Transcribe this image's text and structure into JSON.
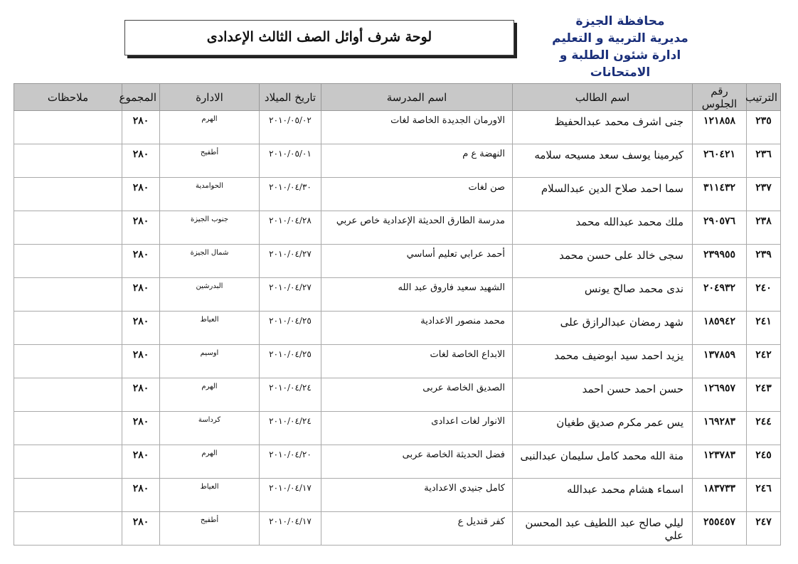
{
  "header": {
    "org_lines": [
      "محافظة الجيزة",
      "مديرية التربية و التعليم",
      "ادارة شئون الطلبة و الامتحانات"
    ],
    "title": "لوحة شرف أوائل الصف الثالث الإعدادى"
  },
  "table": {
    "columns": [
      "الترتيب",
      "رقم الجلوس",
      "اسم الطالب",
      "اسم المدرسة",
      "تاريخ الميلاد",
      "الادارة",
      "المجموع",
      "ملاحظات"
    ],
    "rows": [
      [
        "٢٣٥",
        "١٢١٨٥٨",
        "جنى اشرف محمد عبدالحفيظ",
        "الاورمان الجديدة الخاصة لغات",
        "٢٠١٠/٠٥/٠٢",
        "الهرم",
        "٢٨٠",
        ""
      ],
      [
        "٢٣٦",
        "٢٦٠٤٢١",
        "كيرمينا يوسف سعد مسيحه سلامه",
        "النهضة ع م",
        "٢٠١٠/٠٥/٠١",
        "أطفيح",
        "٢٨٠",
        ""
      ],
      [
        "٢٣٧",
        "٣١١٤٣٢",
        "سما احمد صلاح الدين عبدالسلام",
        "صن لغات",
        "٢٠١٠/٠٤/٣٠",
        "الحوامدية",
        "٢٨٠",
        ""
      ],
      [
        "٢٣٨",
        "٢٩٠٥٧٦",
        "ملك محمد عبدالله محمد",
        "مدرسة الطارق الحديثة الإعدادية خاص عربي",
        "٢٠١٠/٠٤/٢٨",
        "جنوب الجيزة",
        "٢٨٠",
        ""
      ],
      [
        "٢٣٩",
        "٢٣٩٩٥٥",
        "سجى خالد على حسن محمد",
        "أحمد عرابي تعليم أساسي",
        "٢٠١٠/٠٤/٢٧",
        "شمال الجيزة",
        "٢٨٠",
        ""
      ],
      [
        "٢٤٠",
        "٢٠٤٩٣٢",
        "ندى محمد صالح يونس",
        "الشهيد سعيد فاروق عبد الله",
        "٢٠١٠/٠٤/٢٧",
        "البدرشين",
        "٢٨٠",
        ""
      ],
      [
        "٢٤١",
        "١٨٥٩٤٢",
        "شهد رمضان عبدالرازق على",
        "محمد منصور الاعدادية",
        "٢٠١٠/٠٤/٢٥",
        "العياط",
        "٢٨٠",
        ""
      ],
      [
        "٢٤٢",
        "١٣٧٨٥٩",
        "يزيد احمد سيد ابوضيف محمد",
        "الابداع الخاصة لغات",
        "٢٠١٠/٠٤/٢٥",
        "اوسيم",
        "٢٨٠",
        ""
      ],
      [
        "٢٤٣",
        "١٢٦٩٥٧",
        "حسن احمد حسن احمد",
        "الصديق الخاصة عربى",
        "٢٠١٠/٠٤/٢٤",
        "الهرم",
        "٢٨٠",
        ""
      ],
      [
        "٢٤٤",
        "١٦٩٢٨٣",
        "يس عمر مكرم صديق طغيان",
        "الانوار لغات اعدادى",
        "٢٠١٠/٠٤/٢٤",
        "كرداسة",
        "٢٨٠",
        ""
      ],
      [
        "٢٤٥",
        "١٢٣٧٨٣",
        "منة الله محمد كامل سليمان عبدالنبى",
        "فضل الحديثة الخاصة عربى",
        "٢٠١٠/٠٤/٢٠",
        "الهرم",
        "٢٨٠",
        ""
      ],
      [
        "٢٤٦",
        "١٨٣٧٣٣",
        "اسماء هشام محمد عبدالله",
        "كامل جنيدي الاعدادية",
        "٢٠١٠/٠٤/١٧",
        "العياط",
        "٢٨٠",
        ""
      ],
      [
        "٢٤٧",
        "٢٥٥٤٥٧",
        "ليلي صالح عبد اللطيف عبد المحسن علي",
        "كفر قنديل ع",
        "٢٠١٠/٠٤/١٧",
        "أطفيح",
        "٢٨٠",
        ""
      ]
    ]
  }
}
